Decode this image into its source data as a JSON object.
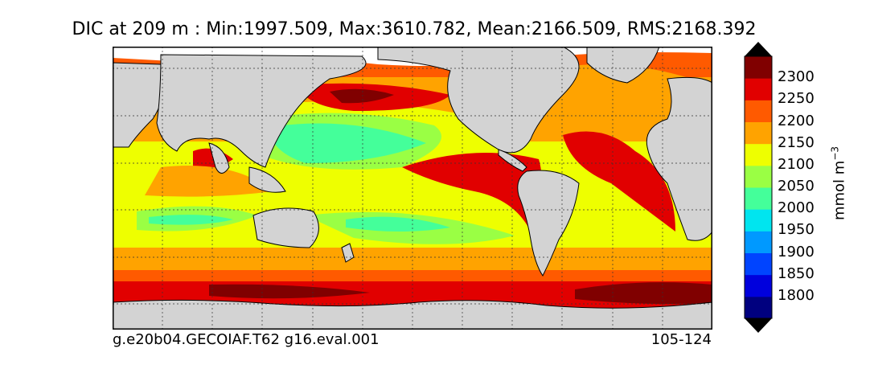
{
  "title": "DIC at 209 m : Min:1997.509, Max:3610.782, Mean:2166.509, RMS:2168.392",
  "footer": {
    "left": "g.e20b04.GECOIAF.T62 g16.eval.001",
    "right": "105-124"
  },
  "colorbar": {
    "units_base": "mmol m",
    "units_exp": "−3",
    "ticks": [
      "2300",
      "2250",
      "2200",
      "2150",
      "2100",
      "2050",
      "2000",
      "1950",
      "1900",
      "1850",
      "1800"
    ],
    "colors_low_to_high": [
      "#00007f",
      "#0000dd",
      "#0044ff",
      "#0099ff",
      "#00e5ef",
      "#44ff9a",
      "#9aff44",
      "#eeff00",
      "#ffa300",
      "#ff5a00",
      "#e10000",
      "#800000"
    ],
    "extend": "both"
  },
  "map": {
    "land_color": "#d3d3d3",
    "ice_color": "#ffffff",
    "projection": "global-latlon",
    "graticule": "dotted"
  }
}
